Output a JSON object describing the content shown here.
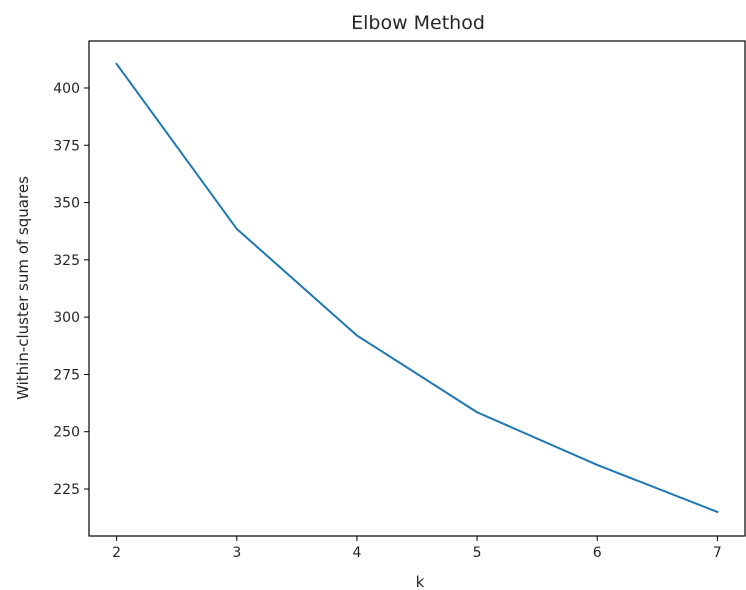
{
  "chart_data": {
    "type": "line",
    "title": "Elbow Method",
    "xlabel": "k",
    "ylabel": "Within-cluster sum of squares",
    "x": [
      2,
      3,
      4,
      5,
      6,
      7
    ],
    "series": [
      {
        "values": [
          410.5,
          338.5,
          292.0,
          258.5,
          235.5,
          215.0
        ],
        "color": "#1f77b4"
      }
    ],
    "xlim": [
      1.77,
      7.23
    ],
    "ylim": [
      204.5,
      420.5
    ],
    "xticks": [
      2,
      3,
      4,
      5,
      6,
      7
    ],
    "xtick_labels": [
      "2",
      "3",
      "4",
      "5",
      "6",
      "7"
    ],
    "yticks": [
      225,
      250,
      275,
      300,
      325,
      350,
      375,
      400
    ],
    "ytick_labels": [
      "225",
      "250",
      "275",
      "300",
      "325",
      "350",
      "375",
      "400"
    ],
    "grid": false
  }
}
